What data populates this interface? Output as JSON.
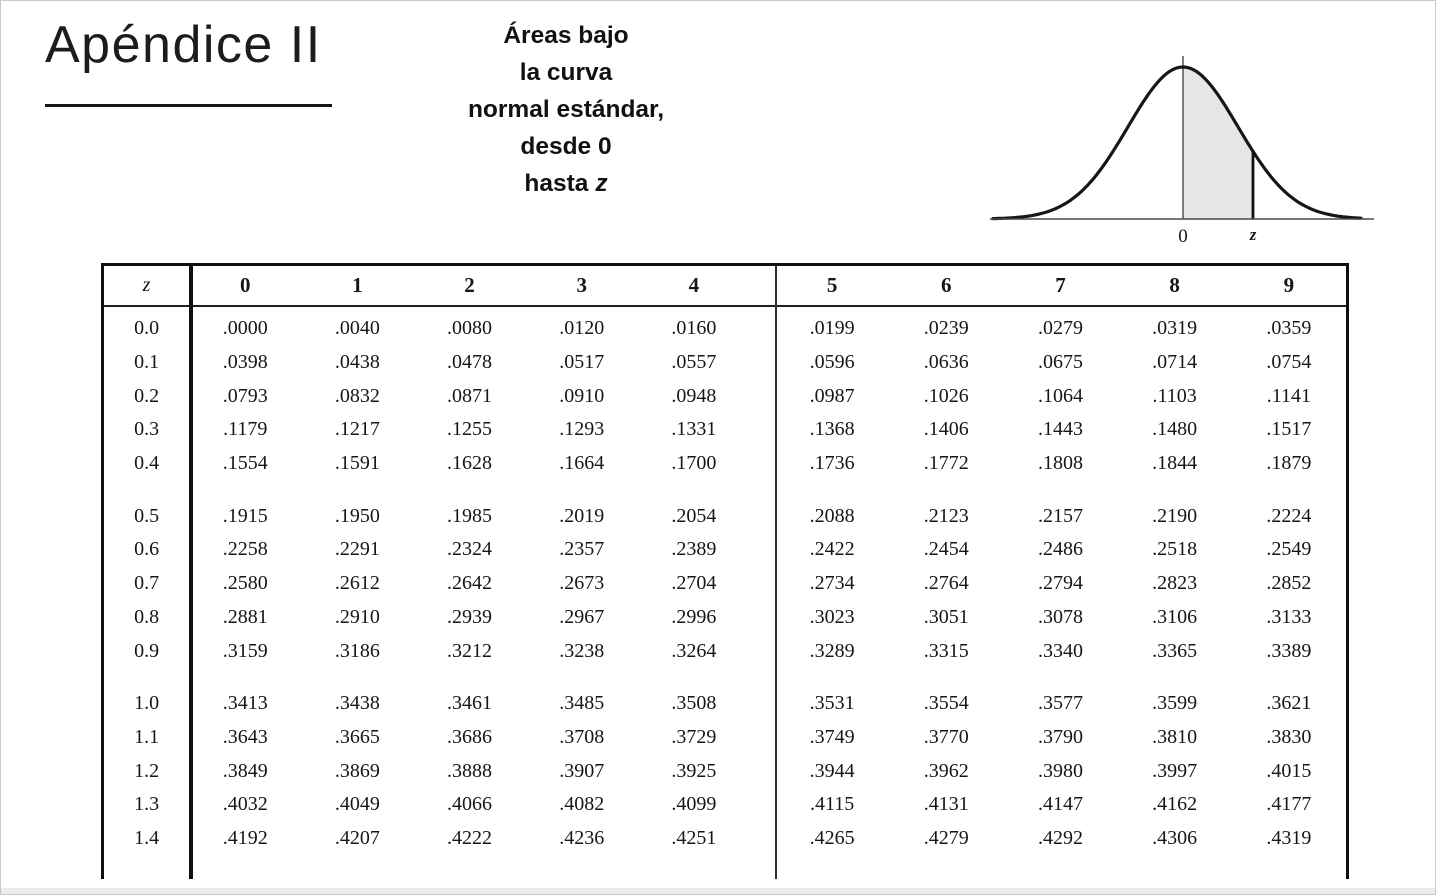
{
  "page": {
    "appendix_title": "Apéndice II",
    "caption_lines": [
      "Áreas bajo",
      "la curva",
      "normal estándar,",
      "desde 0"
    ],
    "caption_last_prefix": "hasta",
    "caption_last_z": "z"
  },
  "diagram": {
    "zero_label": "0",
    "z_label": "z",
    "shade_color": "#e6e6e6",
    "curve_color": "#161616"
  },
  "table": {
    "corner_header": "z",
    "column_headers": [
      "0",
      "1",
      "2",
      "3",
      "4",
      "5",
      "6",
      "7",
      "8",
      "9"
    ],
    "row_groups": [
      {
        "rows": [
          {
            "z": "0.0",
            "values": [
              ".0000",
              ".0040",
              ".0080",
              ".0120",
              ".0160",
              ".0199",
              ".0239",
              ".0279",
              ".0319",
              ".0359"
            ]
          },
          {
            "z": "0.1",
            "values": [
              ".0398",
              ".0438",
              ".0478",
              ".0517",
              ".0557",
              ".0596",
              ".0636",
              ".0675",
              ".0714",
              ".0754"
            ]
          },
          {
            "z": "0.2",
            "values": [
              ".0793",
              ".0832",
              ".0871",
              ".0910",
              ".0948",
              ".0987",
              ".1026",
              ".1064",
              ".1103",
              ".1141"
            ]
          },
          {
            "z": "0.3",
            "values": [
              ".1179",
              ".1217",
              ".1255",
              ".1293",
              ".1331",
              ".1368",
              ".1406",
              ".1443",
              ".1480",
              ".1517"
            ]
          },
          {
            "z": "0.4",
            "values": [
              ".1554",
              ".1591",
              ".1628",
              ".1664",
              ".1700",
              ".1736",
              ".1772",
              ".1808",
              ".1844",
              ".1879"
            ]
          }
        ]
      },
      {
        "rows": [
          {
            "z": "0.5",
            "values": [
              ".1915",
              ".1950",
              ".1985",
              ".2019",
              ".2054",
              ".2088",
              ".2123",
              ".2157",
              ".2190",
              ".2224"
            ]
          },
          {
            "z": "0.6",
            "values": [
              ".2258",
              ".2291",
              ".2324",
              ".2357",
              ".2389",
              ".2422",
              ".2454",
              ".2486",
              ".2518",
              ".2549"
            ]
          },
          {
            "z": "0.7",
            "values": [
              ".2580",
              ".2612",
              ".2642",
              ".2673",
              ".2704",
              ".2734",
              ".2764",
              ".2794",
              ".2823",
              ".2852"
            ]
          },
          {
            "z": "0.8",
            "values": [
              ".2881",
              ".2910",
              ".2939",
              ".2967",
              ".2996",
              ".3023",
              ".3051",
              ".3078",
              ".3106",
              ".3133"
            ]
          },
          {
            "z": "0.9",
            "values": [
              ".3159",
              ".3186",
              ".3212",
              ".3238",
              ".3264",
              ".3289",
              ".3315",
              ".3340",
              ".3365",
              ".3389"
            ]
          }
        ]
      },
      {
        "rows": [
          {
            "z": "1.0",
            "values": [
              ".3413",
              ".3438",
              ".3461",
              ".3485",
              ".3508",
              ".3531",
              ".3554",
              ".3577",
              ".3599",
              ".3621"
            ]
          },
          {
            "z": "1.1",
            "values": [
              ".3643",
              ".3665",
              ".3686",
              ".3708",
              ".3729",
              ".3749",
              ".3770",
              ".3790",
              ".3810",
              ".3830"
            ]
          },
          {
            "z": "1.2",
            "values": [
              ".3849",
              ".3869",
              ".3888",
              ".3907",
              ".3925",
              ".3944",
              ".3962",
              ".3980",
              ".3997",
              ".4015"
            ]
          },
          {
            "z": "1.3",
            "values": [
              ".4032",
              ".4049",
              ".4066",
              ".4082",
              ".4099",
              ".4115",
              ".4131",
              ".4147",
              ".4162",
              ".4177"
            ]
          },
          {
            "z": "1.4",
            "values": [
              ".4192",
              ".4207",
              ".4222",
              ".4236",
              ".4251",
              ".4265",
              ".4279",
              ".4292",
              ".4306",
              ".4319"
            ]
          }
        ]
      }
    ]
  }
}
